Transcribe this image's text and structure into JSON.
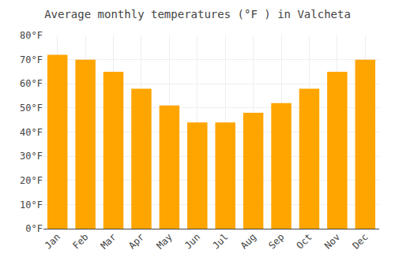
{
  "chart_data": {
    "type": "bar",
    "title": "Average monthly temperatures (°F ) in Valcheta",
    "categories": [
      "Jan",
      "Feb",
      "Mar",
      "Apr",
      "May",
      "Jun",
      "Jul",
      "Aug",
      "Sep",
      "Oct",
      "Nov",
      "Dec"
    ],
    "values": [
      72,
      70,
      65,
      58,
      51,
      44,
      44,
      48,
      52,
      58,
      65,
      70
    ],
    "color": "#FFA500",
    "ylim": [
      0,
      80
    ],
    "yticks": [
      {
        "value": 0,
        "label": "0°F"
      },
      {
        "value": 10,
        "label": "10°F"
      },
      {
        "value": 20,
        "label": "20°F"
      },
      {
        "value": 30,
        "label": "30°F"
      },
      {
        "value": 40,
        "label": "40°F"
      },
      {
        "value": 50,
        "label": "50°F"
      },
      {
        "value": 60,
        "label": "60°F"
      },
      {
        "value": 70,
        "label": "70°F"
      },
      {
        "value": 80,
        "label": "80°F"
      }
    ],
    "grid": true
  }
}
